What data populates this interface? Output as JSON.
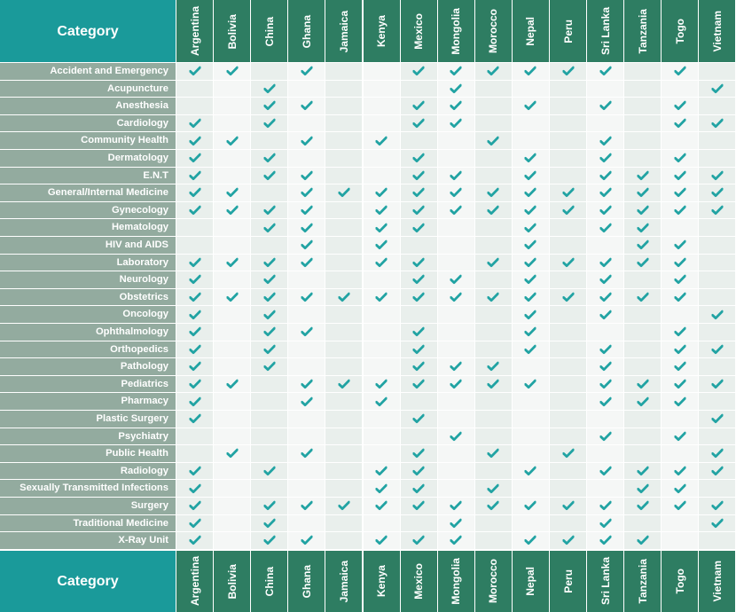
{
  "header": {
    "category_label": "Category"
  },
  "footer": {
    "category_label": "Category"
  },
  "countries": [
    "Argentina",
    "Bolivia",
    "China",
    "Ghana",
    "Jamaica",
    "Kenya",
    "Mexico",
    "Mongolia",
    "Morocco",
    "Nepal",
    "Peru",
    "Sri Lanka",
    "Tanzania",
    "Togo",
    "Vietnam"
  ],
  "rows": [
    {
      "label": "Accident and Emergency",
      "checks": [
        1,
        1,
        0,
        1,
        0,
        0,
        1,
        1,
        1,
        1,
        1,
        1,
        0,
        1,
        0
      ]
    },
    {
      "label": "Acupuncture",
      "checks": [
        0,
        0,
        1,
        0,
        0,
        0,
        0,
        1,
        0,
        0,
        0,
        0,
        0,
        0,
        1
      ]
    },
    {
      "label": "Anesthesia",
      "checks": [
        0,
        0,
        1,
        1,
        0,
        0,
        1,
        1,
        0,
        1,
        0,
        1,
        0,
        1,
        0
      ]
    },
    {
      "label": "Cardiology",
      "checks": [
        1,
        0,
        1,
        0,
        0,
        0,
        1,
        1,
        0,
        0,
        0,
        0,
        0,
        1,
        1
      ]
    },
    {
      "label": "Community Health",
      "checks": [
        1,
        1,
        0,
        1,
        0,
        1,
        0,
        0,
        1,
        0,
        0,
        1,
        0,
        0,
        0
      ]
    },
    {
      "label": "Dermatology",
      "checks": [
        1,
        0,
        1,
        0,
        0,
        0,
        1,
        0,
        0,
        1,
        0,
        1,
        0,
        1,
        0
      ]
    },
    {
      "label": "E.N.T",
      "checks": [
        1,
        0,
        1,
        1,
        0,
        0,
        1,
        1,
        0,
        1,
        0,
        1,
        1,
        1,
        1
      ]
    },
    {
      "label": "General/Internal Medicine",
      "checks": [
        1,
        1,
        0,
        1,
        1,
        1,
        1,
        1,
        1,
        1,
        1,
        1,
        1,
        1,
        1
      ]
    },
    {
      "label": "Gynecology",
      "checks": [
        1,
        1,
        1,
        1,
        0,
        1,
        1,
        1,
        1,
        1,
        1,
        1,
        1,
        1,
        1
      ]
    },
    {
      "label": "Hematology",
      "checks": [
        0,
        0,
        1,
        1,
        0,
        1,
        1,
        0,
        0,
        1,
        0,
        1,
        1,
        0,
        0
      ]
    },
    {
      "label": "HIV and AIDS",
      "checks": [
        0,
        0,
        0,
        1,
        0,
        1,
        0,
        0,
        0,
        1,
        0,
        0,
        1,
        1,
        0
      ]
    },
    {
      "label": "Laboratory",
      "checks": [
        1,
        1,
        1,
        1,
        0,
        1,
        1,
        0,
        1,
        1,
        1,
        1,
        1,
        1,
        0
      ]
    },
    {
      "label": "Neurology",
      "checks": [
        1,
        0,
        1,
        0,
        0,
        0,
        1,
        1,
        0,
        1,
        0,
        1,
        0,
        1,
        0
      ]
    },
    {
      "label": "Obstetrics",
      "checks": [
        1,
        1,
        1,
        1,
        1,
        1,
        1,
        1,
        1,
        1,
        1,
        1,
        1,
        1,
        0
      ]
    },
    {
      "label": "Oncology",
      "checks": [
        1,
        0,
        1,
        0,
        0,
        0,
        0,
        0,
        0,
        1,
        0,
        1,
        0,
        0,
        1
      ]
    },
    {
      "label": "Ophthalmology",
      "checks": [
        1,
        0,
        1,
        1,
        0,
        0,
        1,
        0,
        0,
        1,
        0,
        0,
        0,
        1,
        0
      ]
    },
    {
      "label": "Orthopedics",
      "checks": [
        1,
        0,
        1,
        0,
        0,
        0,
        1,
        0,
        0,
        1,
        0,
        1,
        0,
        1,
        1
      ]
    },
    {
      "label": "Pathology",
      "checks": [
        1,
        0,
        1,
        0,
        0,
        0,
        1,
        1,
        1,
        0,
        0,
        1,
        0,
        1,
        0
      ]
    },
    {
      "label": "Pediatrics",
      "checks": [
        1,
        1,
        0,
        1,
        1,
        1,
        1,
        1,
        1,
        1,
        0,
        1,
        1,
        1,
        1
      ]
    },
    {
      "label": "Pharmacy",
      "checks": [
        1,
        0,
        0,
        1,
        0,
        1,
        0,
        0,
        0,
        0,
        0,
        1,
        1,
        1,
        0
      ]
    },
    {
      "label": "Plastic Surgery",
      "checks": [
        1,
        0,
        0,
        0,
        0,
        0,
        1,
        0,
        0,
        0,
        0,
        0,
        0,
        0,
        1
      ]
    },
    {
      "label": "Psychiatry",
      "checks": [
        0,
        0,
        0,
        0,
        0,
        0,
        0,
        1,
        0,
        0,
        0,
        1,
        0,
        1,
        0
      ]
    },
    {
      "label": "Public Health",
      "checks": [
        0,
        1,
        0,
        1,
        0,
        0,
        1,
        0,
        1,
        0,
        1,
        0,
        0,
        0,
        1
      ]
    },
    {
      "label": "Radiology",
      "checks": [
        1,
        0,
        1,
        0,
        0,
        1,
        1,
        0,
        0,
        1,
        0,
        1,
        1,
        1,
        1
      ]
    },
    {
      "label": "Sexually Transmitted Infections",
      "checks": [
        1,
        0,
        0,
        0,
        0,
        1,
        1,
        0,
        1,
        0,
        0,
        0,
        1,
        1,
        0
      ]
    },
    {
      "label": "Surgery",
      "checks": [
        1,
        0,
        1,
        1,
        1,
        1,
        1,
        1,
        1,
        1,
        1,
        1,
        1,
        1,
        1
      ]
    },
    {
      "label": "Traditional Medicine",
      "checks": [
        1,
        0,
        1,
        0,
        0,
        0,
        0,
        1,
        0,
        0,
        0,
        1,
        0,
        0,
        1
      ]
    },
    {
      "label": "X-Ray Unit",
      "checks": [
        1,
        0,
        1,
        1,
        0,
        1,
        1,
        1,
        0,
        1,
        1,
        1,
        1,
        0,
        0
      ]
    }
  ],
  "colors": {
    "header_teal": "#1a9a9a",
    "header_green": "#2e7d62",
    "row_label_bg": "#93ab9f",
    "cell_light": "#f5f7f6",
    "cell_alt": "#e9efec",
    "check": "#21a3a3"
  },
  "icons": {
    "check": "check-icon"
  }
}
